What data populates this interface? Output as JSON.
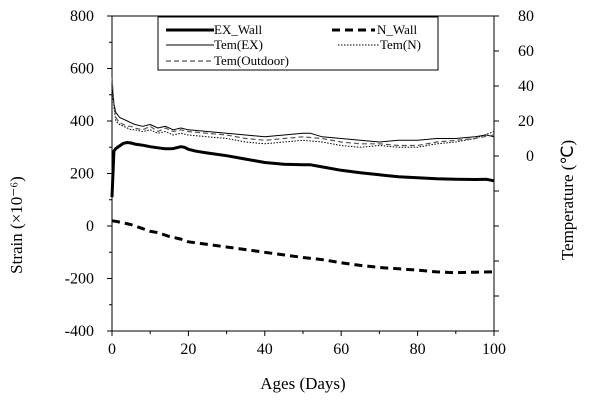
{
  "chart_data": {
    "type": "line",
    "xlabel": "Ages (Days)",
    "ylabel_left": "Strain (×10⁻⁶)",
    "ylabel_right": "Temperature (℃)",
    "xlim": [
      0,
      100
    ],
    "ylim_left": [
      -400,
      800
    ],
    "ylim_right": [
      -100,
      80
    ],
    "x_ticks": [
      0,
      20,
      40,
      60,
      80,
      100
    ],
    "y_left_ticks": [
      -400,
      -200,
      0,
      200,
      400,
      600,
      800
    ],
    "y_right_ticks": [
      0,
      20,
      40,
      60,
      80
    ],
    "grid": false,
    "legend_position": "top",
    "series": [
      {
        "name": "EX_Wall",
        "axis": "left",
        "style": "solid-thick",
        "color": "#000000",
        "x": [
          0,
          0.5,
          1,
          2,
          3,
          4,
          5,
          6,
          8,
          10,
          12,
          14,
          16,
          18,
          19,
          20,
          22,
          25,
          30,
          35,
          40,
          45,
          50,
          52,
          55,
          60,
          65,
          70,
          75,
          80,
          85,
          90,
          95,
          98,
          100
        ],
        "y": [
          110,
          285,
          295,
          305,
          315,
          318,
          316,
          312,
          308,
          302,
          298,
          294,
          295,
          302,
          300,
          292,
          285,
          278,
          268,
          255,
          242,
          235,
          233,
          233,
          225,
          212,
          203,
          195,
          188,
          184,
          180,
          178,
          177,
          178,
          172
        ]
      },
      {
        "name": "N_Wall",
        "axis": "left",
        "style": "dashed-thick",
        "color": "#000000",
        "x": [
          0,
          1,
          2,
          3,
          5,
          8,
          10,
          12,
          15,
          18,
          20,
          25,
          30,
          35,
          40,
          45,
          50,
          55,
          60,
          65,
          70,
          75,
          80,
          85,
          90,
          95,
          100
        ],
        "y": [
          20,
          18,
          15,
          12,
          5,
          -10,
          -20,
          -25,
          -40,
          -50,
          -60,
          -70,
          -80,
          -90,
          -100,
          -110,
          -120,
          -128,
          -140,
          -150,
          -158,
          -163,
          -168,
          -175,
          -178,
          -176,
          -175
        ]
      },
      {
        "name": "Tem(EX)",
        "axis": "right",
        "style": "solid-thin",
        "color": "#000000",
        "x": [
          0,
          0.5,
          1,
          2,
          3,
          4,
          5,
          6,
          8,
          10,
          12,
          14,
          16,
          18,
          20,
          25,
          30,
          35,
          40,
          45,
          50,
          52,
          55,
          60,
          65,
          70,
          75,
          80,
          85,
          90,
          95,
          98,
          100
        ],
        "y": [
          42,
          30,
          25,
          22,
          21,
          20,
          19,
          18,
          17,
          18,
          16,
          17,
          15,
          16,
          15,
          14,
          13,
          12,
          11,
          12,
          13,
          13,
          11,
          10,
          9,
          8,
          9,
          9,
          10,
          10,
          11,
          12,
          11
        ]
      },
      {
        "name": "Tem(N)",
        "axis": "right",
        "style": "dotted-thin",
        "color": "#000000",
        "x": [
          0,
          0.5,
          1,
          2,
          3,
          4,
          5,
          6,
          8,
          10,
          12,
          14,
          16,
          18,
          20,
          25,
          30,
          35,
          40,
          45,
          50,
          55,
          60,
          65,
          70,
          75,
          80,
          85,
          90,
          95,
          100
        ],
        "y": [
          38,
          28,
          20,
          18,
          17,
          16,
          15,
          15,
          14,
          15,
          13,
          14,
          12,
          13,
          12,
          11,
          10,
          8,
          7,
          8,
          9,
          8,
          6,
          5,
          6,
          5,
          5,
          7,
          8,
          10,
          14
        ]
      },
      {
        "name": "Tem(Outdoor)",
        "axis": "right",
        "style": "dashed-thin",
        "color": "#555555",
        "x": [
          0,
          0.5,
          1,
          2,
          3,
          4,
          5,
          6,
          8,
          10,
          12,
          14,
          16,
          18,
          20,
          25,
          30,
          35,
          40,
          45,
          50,
          55,
          60,
          65,
          70,
          75,
          80,
          85,
          90,
          95,
          100
        ],
        "y": [
          45,
          30,
          22,
          19,
          18,
          17,
          17,
          16,
          15,
          17,
          14,
          16,
          14,
          15,
          14,
          13,
          12,
          10,
          9,
          10,
          11,
          10,
          8,
          7,
          7,
          6,
          6,
          8,
          9,
          10,
          12
        ]
      }
    ]
  }
}
